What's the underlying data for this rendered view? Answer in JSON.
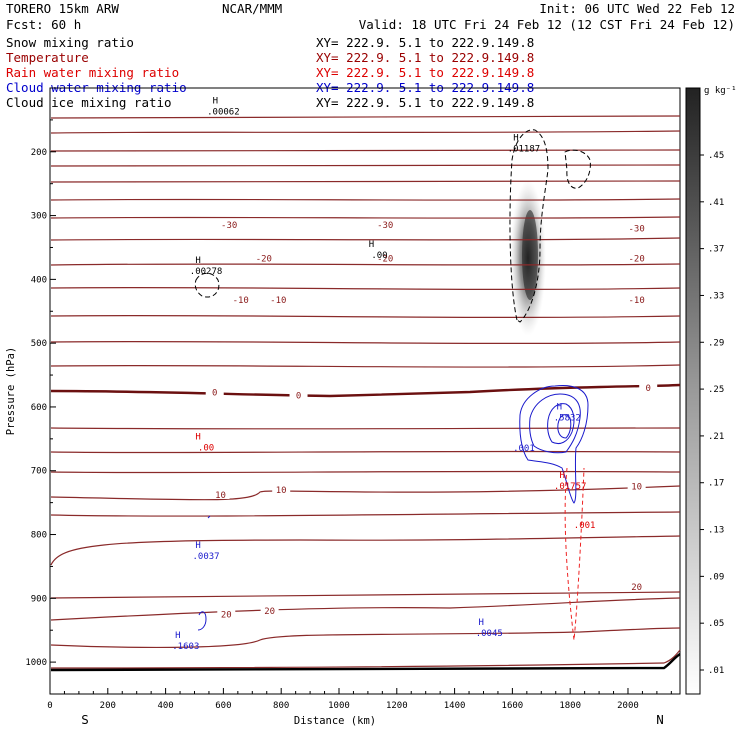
{
  "header": {
    "model": "TORERO  15km ARW",
    "center": "NCAR/MMM",
    "init": "Init: 06 UTC Wed 22 Feb 12",
    "fcst": "Fcst:   60 h",
    "valid": "Valid: 18 UTC Fri 24 Feb 12 (12 CST Fri 24 Feb 12)"
  },
  "fields": [
    {
      "name": "Snow mixing ratio",
      "xy": "XY= 222.9.  5.1 to 222.9.149.8",
      "color": "#000000"
    },
    {
      "name": "Temperature",
      "xy": "XY= 222.9.  5.1 to 222.9.149.8",
      "color": "#990000"
    },
    {
      "name": "Rain water mixing ratio",
      "xy": "XY= 222.9.  5.1 to 222.9.149.8",
      "color": "#dd0000"
    },
    {
      "name": "Cloud water mixing ratio",
      "xy": "XY= 222.9.  5.1 to 222.9.149.8",
      "color": "#0000cc"
    },
    {
      "name": "Cloud ice mixing ratio",
      "xy": "XY= 222.9.  5.1 to 222.9.149.8",
      "color": "#000000"
    }
  ],
  "colorbar": {
    "unit": "g kg⁻¹",
    "labels": [
      ".45",
      ".41",
      ".37",
      ".33",
      ".29",
      ".25",
      ".21",
      ".17",
      ".13",
      ".09",
      ".05",
      ".01"
    ]
  },
  "chart_data": {
    "type": "cross-section",
    "xlabel": "Distance (km)",
    "ylabel": "Pressure (hPa)",
    "xlim": [
      0,
      2180
    ],
    "ylim": [
      1050,
      100
    ],
    "xticks": [
      0,
      200,
      400,
      600,
      800,
      1000,
      1200,
      1400,
      1600,
      1800,
      2000
    ],
    "yticks": [
      200,
      300,
      400,
      500,
      600,
      700,
      800,
      900,
      1000
    ],
    "x_end_labels": {
      "left": "S",
      "right": "N"
    },
    "temperature_labels": [
      {
        "label": "-30",
        "x": 620,
        "p": 315
      },
      {
        "label": "-30",
        "x": 1160,
        "p": 315
      },
      {
        "label": "-30",
        "x": 2030,
        "p": 320
      },
      {
        "label": "-20",
        "x": 740,
        "p": 367
      },
      {
        "label": "-20",
        "x": 1160,
        "p": 367
      },
      {
        "label": "-20",
        "x": 2030,
        "p": 367
      },
      {
        "label": "-10",
        "x": 660,
        "p": 432
      },
      {
        "label": "-10",
        "x": 790,
        "p": 432
      },
      {
        "label": "-10",
        "x": 2030,
        "p": 432
      },
      {
        "label": "0",
        "x": 570,
        "p": 577
      },
      {
        "label": "0",
        "x": 860,
        "p": 582
      },
      {
        "label": "0",
        "x": 2070,
        "p": 570
      },
      {
        "label": "10",
        "x": 590,
        "p": 738
      },
      {
        "label": "10",
        "x": 800,
        "p": 730
      },
      {
        "label": "10",
        "x": 2030,
        "p": 725
      },
      {
        "label": "20",
        "x": 610,
        "p": 925
      },
      {
        "label": "20",
        "x": 760,
        "p": 920
      },
      {
        "label": "20",
        "x": 2030,
        "p": 882
      }
    ],
    "extrema": [
      {
        "label": ".00062",
        "x": 600,
        "p": 135,
        "field": "cloud_ice"
      },
      {
        "label": ".01187",
        "x": 1640,
        "p": 193,
        "field": "snow"
      },
      {
        "label": ".00278",
        "x": 540,
        "p": 385,
        "field": "snow"
      },
      {
        "label": ".00",
        "x": 1140,
        "p": 360,
        "field": "snow"
      },
      {
        "label": ".00",
        "x": 540,
        "p": 662,
        "field": "rain"
      },
      {
        "label": ".5832",
        "x": 1790,
        "p": 615,
        "field": "cloud_water"
      },
      {
        "label": ".01757",
        "x": 1800,
        "p": 722,
        "field": "rain"
      },
      {
        "label": ".0037",
        "x": 540,
        "p": 832,
        "field": "cloud_water"
      },
      {
        "label": ".0045",
        "x": 1520,
        "p": 953,
        "field": "cloud_water"
      },
      {
        "label": ".1603",
        "x": 470,
        "p": 973,
        "field": "cloud_water"
      }
    ],
    "contour_labels": [
      {
        "label": ".001",
        "x": 1640,
        "p": 664,
        "field": "cloud_water"
      },
      {
        "label": ".001",
        "x": 1850,
        "p": 785,
        "field": "rain"
      }
    ]
  }
}
